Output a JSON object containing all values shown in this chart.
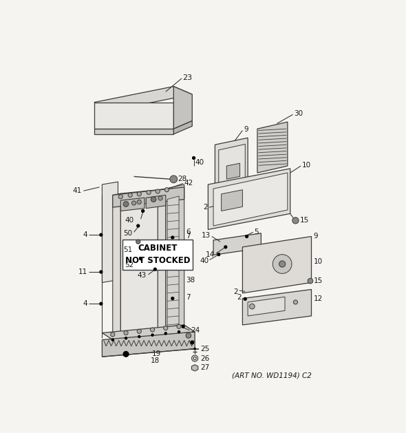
{
  "bg_color": "#f5f4f1",
  "line_color": "#3a3a3a",
  "text_color": "#1a1a1a",
  "fig_width": 5.9,
  "fig_height": 6.29,
  "dpi": 100,
  "title": "(ART NO. WD1194) C2",
  "cabinet_label": "CABINET\nNOT STOCKED"
}
